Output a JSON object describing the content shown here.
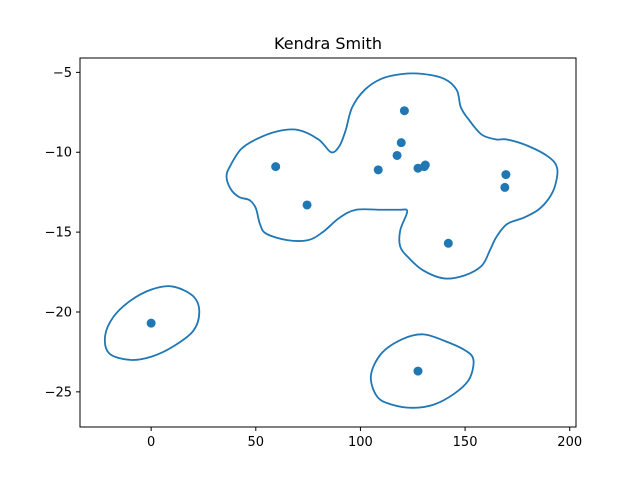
{
  "chart_data": {
    "type": "scatter",
    "title": "Kendra Smith",
    "xlabel": "",
    "ylabel": "",
    "xlim": [
      -34,
      203
    ],
    "ylim": [
      -27.2,
      -4.1
    ],
    "xticks": [
      0,
      50,
      100,
      150,
      200
    ],
    "yticks": [
      -5,
      -10,
      -15,
      -20,
      -25
    ],
    "grid": false,
    "legend": "none",
    "point_color": "#1f77b4",
    "contour_color": "#1f77b4",
    "points": [
      {
        "x": 0,
        "y": -20.7
      },
      {
        "x": 59.5,
        "y": -10.9
      },
      {
        "x": 74.5,
        "y": -13.3
      },
      {
        "x": 108.5,
        "y": -11.1
      },
      {
        "x": 117.5,
        "y": -10.2
      },
      {
        "x": 119.5,
        "y": -9.4
      },
      {
        "x": 121,
        "y": -7.4
      },
      {
        "x": 127.5,
        "y": -11.0
      },
      {
        "x": 130.5,
        "y": -10.9
      },
      {
        "x": 131,
        "y": -10.8
      },
      {
        "x": 142,
        "y": -15.7
      },
      {
        "x": 169.5,
        "y": -11.4
      },
      {
        "x": 169,
        "y": -12.2
      },
      {
        "x": 127.5,
        "y": -23.7
      }
    ],
    "contours": [
      [
        [
          -22,
          -21.5
        ],
        [
          -18,
          -20.3
        ],
        [
          -10,
          -19.3
        ],
        [
          0,
          -18.6
        ],
        [
          10,
          -18.4
        ],
        [
          20,
          -19
        ],
        [
          23,
          -20
        ],
        [
          20,
          -21.2
        ],
        [
          10,
          -22.2
        ],
        [
          0,
          -22.8
        ],
        [
          -10,
          -23
        ],
        [
          -20,
          -22.6
        ],
        [
          -22,
          -21.5
        ]
      ],
      [
        [
          105,
          -24
        ],
        [
          110,
          -22.6
        ],
        [
          120,
          -21.7
        ],
        [
          130,
          -21.4
        ],
        [
          140,
          -21.8
        ],
        [
          150,
          -22.4
        ],
        [
          154,
          -23
        ],
        [
          152,
          -24.2
        ],
        [
          145,
          -25.1
        ],
        [
          135,
          -25.8
        ],
        [
          125,
          -26
        ],
        [
          115,
          -25.8
        ],
        [
          108,
          -25.3
        ],
        [
          105,
          -24
        ]
      ],
      [
        [
          36,
          -11.5
        ],
        [
          38,
          -10.8
        ],
        [
          43,
          -9.8
        ],
        [
          50,
          -9.2
        ],
        [
          60,
          -8.7
        ],
        [
          70,
          -8.6
        ],
        [
          80,
          -9.2
        ],
        [
          86,
          -10
        ],
        [
          90,
          -9.6
        ],
        [
          93,
          -8.6
        ],
        [
          96,
          -7.2
        ],
        [
          102,
          -6.1
        ],
        [
          110,
          -5.4
        ],
        [
          120,
          -5.1
        ],
        [
          130,
          -5.1
        ],
        [
          140,
          -5.4
        ],
        [
          146,
          -6.1
        ],
        [
          148,
          -7.2
        ],
        [
          152,
          -8
        ],
        [
          158,
          -8.9
        ],
        [
          165,
          -9.2
        ],
        [
          170,
          -9.2
        ],
        [
          180,
          -9.6
        ],
        [
          190,
          -10.3
        ],
        [
          194,
          -11
        ],
        [
          193,
          -12.1
        ],
        [
          190,
          -12.9
        ],
        [
          185,
          -13.6
        ],
        [
          178,
          -14.1
        ],
        [
          170,
          -14.5
        ],
        [
          165,
          -15.3
        ],
        [
          162,
          -16.1
        ],
        [
          158,
          -17.1
        ],
        [
          150,
          -17.7
        ],
        [
          140,
          -17.9
        ],
        [
          130,
          -17.4
        ],
        [
          123,
          -16.6
        ],
        [
          119,
          -15.9
        ],
        [
          119,
          -14.9
        ],
        [
          122,
          -13.9
        ],
        [
          122,
          -13.6
        ],
        [
          119,
          -13.6
        ],
        [
          110,
          -13.6
        ],
        [
          98,
          -13.6
        ],
        [
          90,
          -14.1
        ],
        [
          82,
          -15
        ],
        [
          75,
          -15.5
        ],
        [
          65,
          -15.5
        ],
        [
          55,
          -15.1
        ],
        [
          52,
          -14.5
        ],
        [
          50,
          -13.5
        ],
        [
          47,
          -13
        ],
        [
          42,
          -12.8
        ],
        [
          38,
          -12.3
        ],
        [
          36,
          -11.5
        ]
      ]
    ]
  }
}
